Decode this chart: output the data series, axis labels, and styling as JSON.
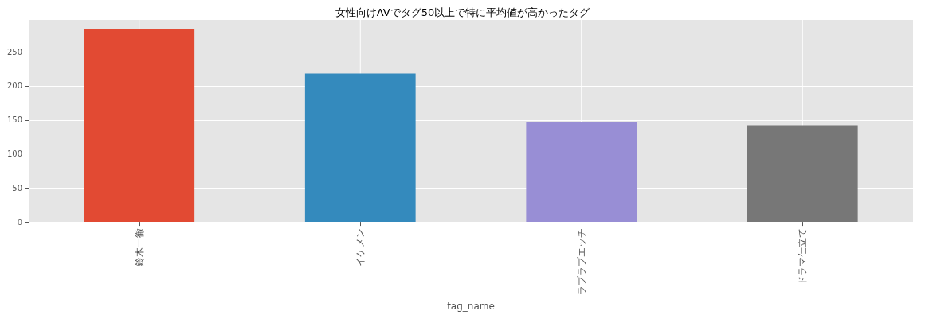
{
  "chart_data": {
    "type": "bar",
    "title": "女性向けAVでタグ50以上で特に平均値が高かったタグ",
    "xlabel": "tag_name",
    "categories": [
      "鈴木一徹",
      "イケメン",
      "ラブラブエッチ",
      "ドラマ仕立て"
    ],
    "values": [
      284,
      218,
      147,
      142
    ],
    "colors": [
      "#e24a33",
      "#348abd",
      "#988ed5",
      "#777777"
    ],
    "ylim": [
      0,
      297
    ],
    "yticks": [
      0,
      50,
      100,
      150,
      200,
      250
    ],
    "grid": true
  }
}
